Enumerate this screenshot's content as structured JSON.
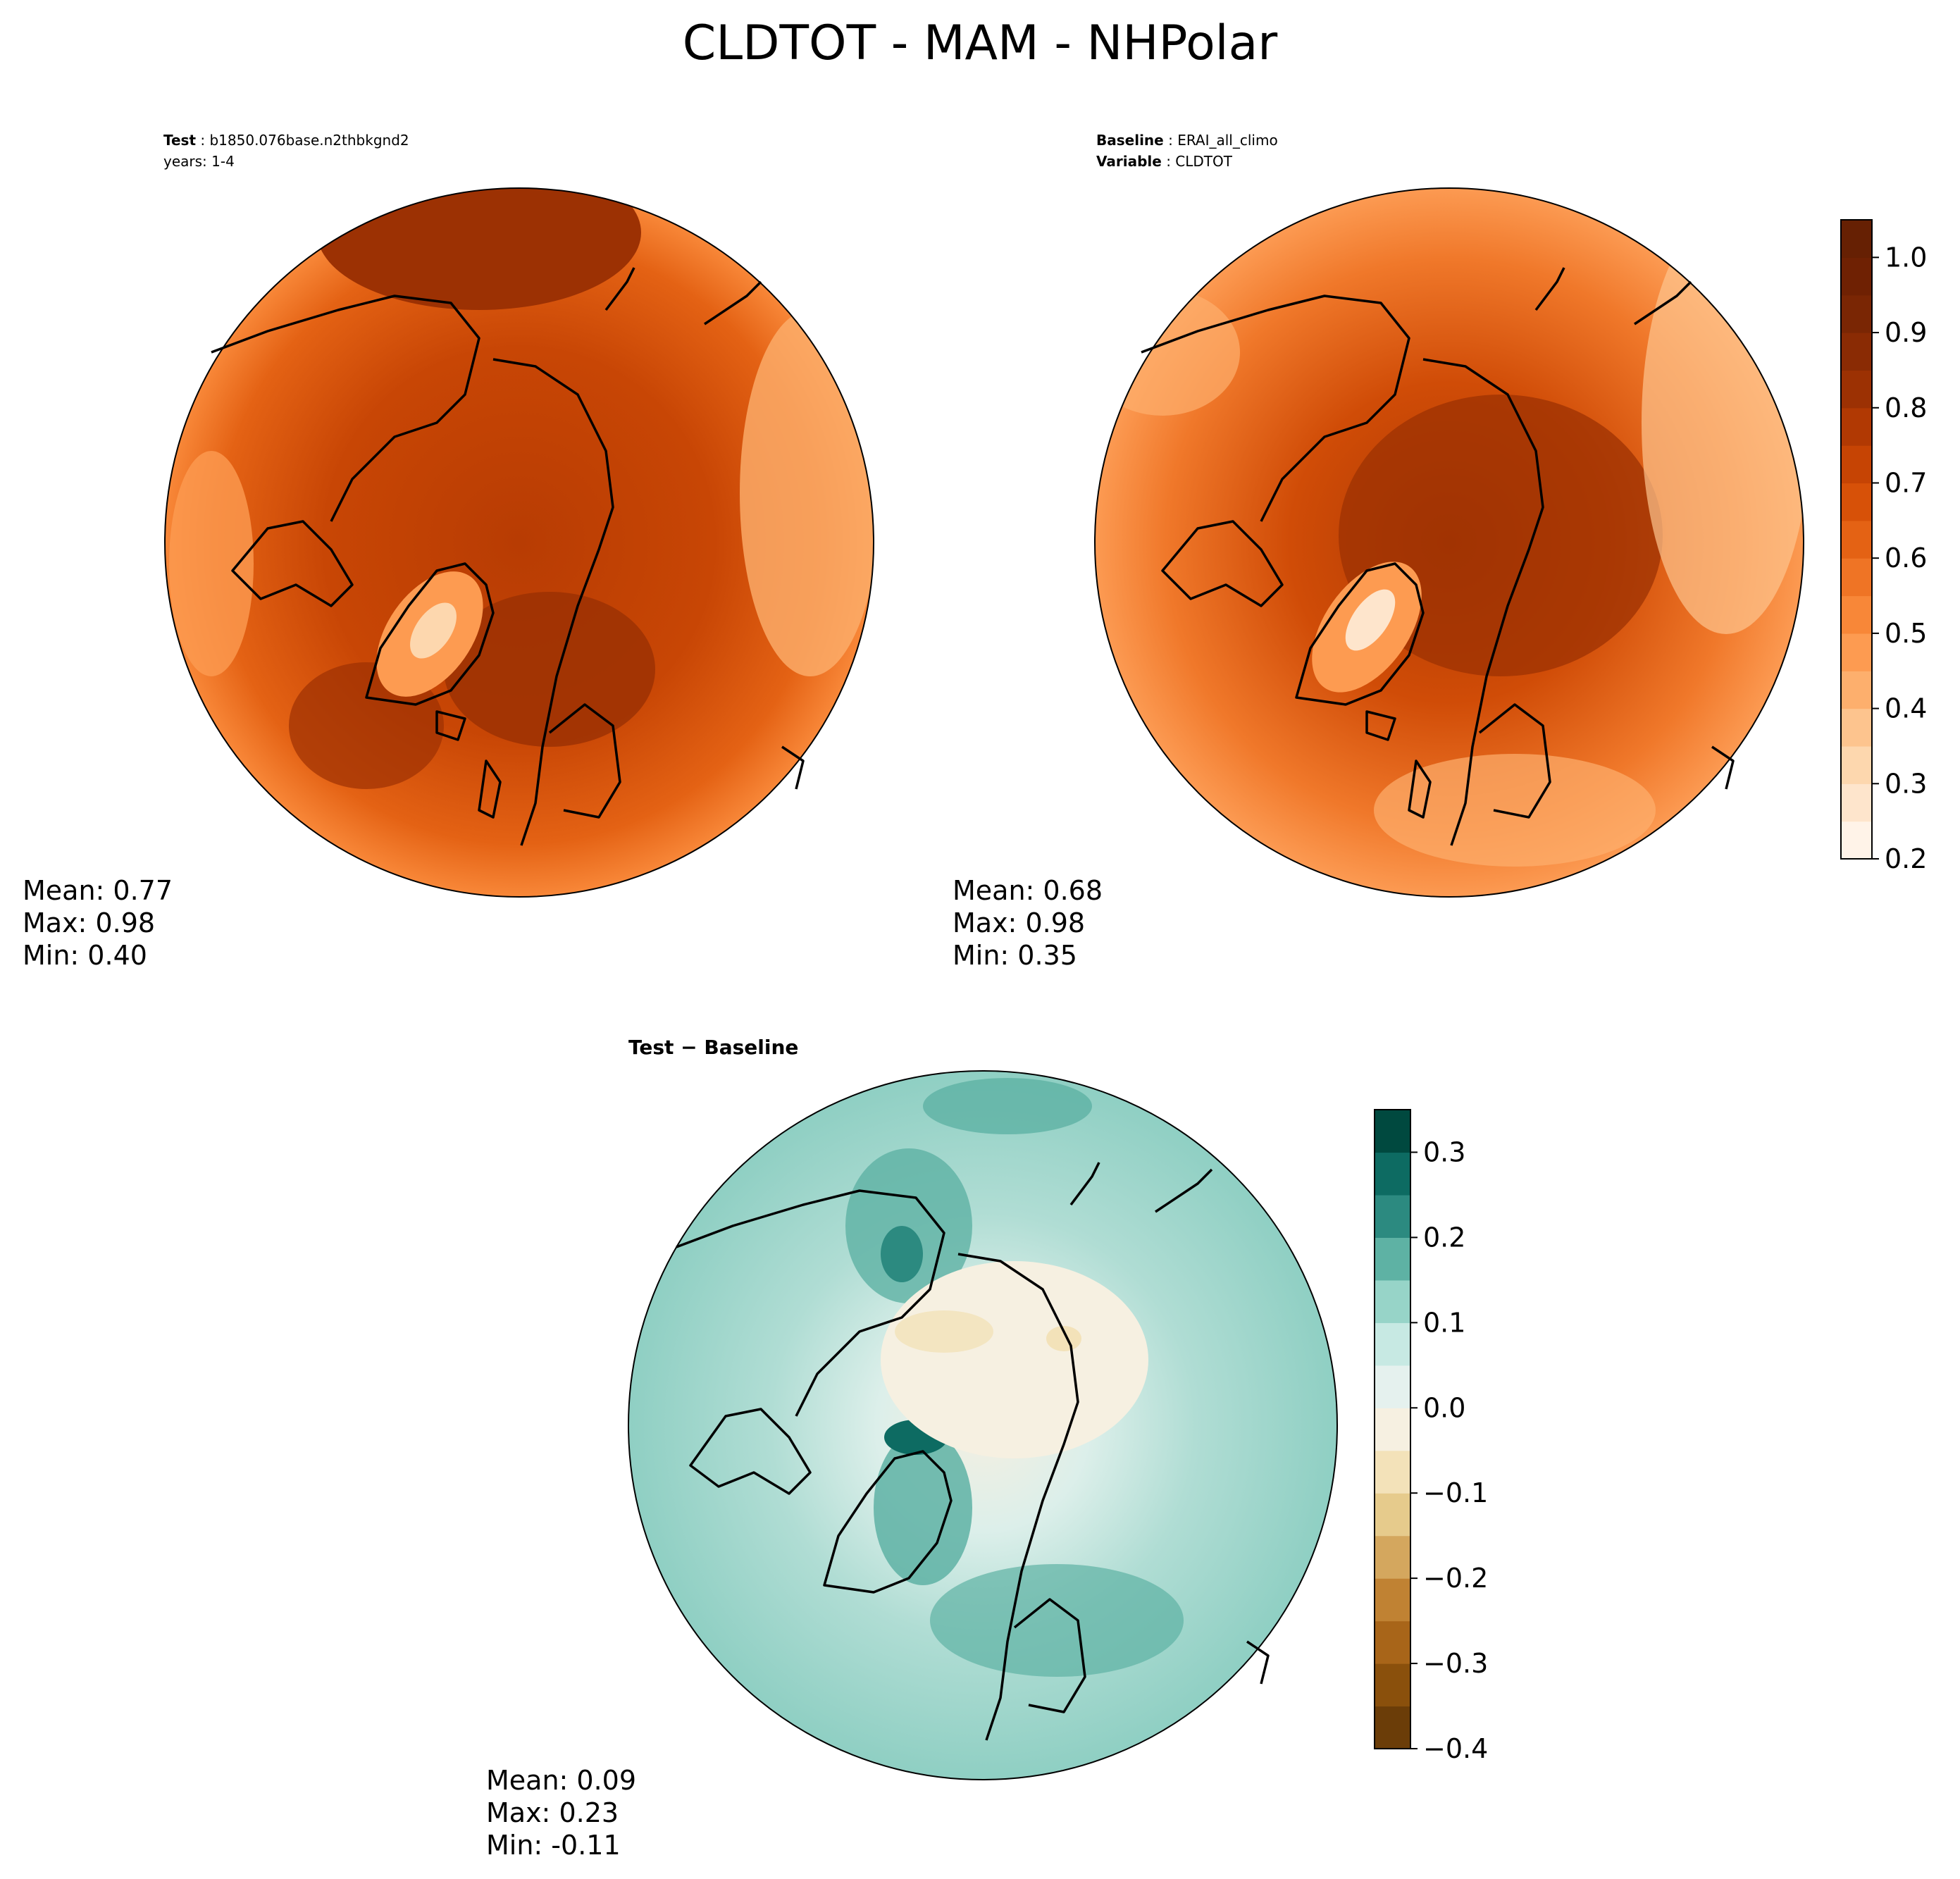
{
  "figure": {
    "title": "CLDTOT - MAM - NHPolar"
  },
  "panels": {
    "test": {
      "label_key": "Test",
      "label_value": "b1850.076base.n2thbkgnd2",
      "years": "years: 1-4",
      "mean": "Mean:  0.77",
      "max": "Max:  0.98",
      "min": "Min:  0.40"
    },
    "baseline": {
      "label_key": "Baseline",
      "label_value": "ERAI_all_climo",
      "var_key": "Variable",
      "var_value": "CLDTOT",
      "mean": "Mean:  0.68",
      "max": "Max:  0.98",
      "min": "Min:  0.35"
    },
    "diff": {
      "title": "Test − Baseline",
      "mean": "Mean:  0.09",
      "max": "Max:  0.23",
      "min": "Min: -0.11"
    }
  },
  "chart_data": [
    {
      "type": "heatmap",
      "projection": "north polar stereographic",
      "field": "CLDTOT",
      "colormap": "Oranges",
      "colorbar_range": [
        0.2,
        1.05
      ],
      "colorbar_ticks": [
        "0.2",
        "0.3",
        "0.4",
        "0.5",
        "0.6",
        "0.7",
        "0.8",
        "0.9",
        "1.0"
      ],
      "colorbar_tick_values": [
        0.2,
        0.3,
        0.4,
        0.5,
        0.6,
        0.7,
        0.8,
        0.9,
        1.0
      ],
      "levels": 17,
      "colors": [
        "#fff3e8",
        "#fee5cc",
        "#fdd7ae",
        "#fdc48e",
        "#fdaf6d",
        "#fd9b51",
        "#f88738",
        "#ef7425",
        "#e46214",
        "#d75108",
        "#c64404",
        "#b13903",
        "#9c3103",
        "#8a2b04",
        "#7a2604",
        "#6f2103",
        "#662003"
      ],
      "panels": [
        {
          "name": "Test",
          "mean": 0.77,
          "max": 0.98,
          "min": 0.4
        },
        {
          "name": "Baseline",
          "mean": 0.68,
          "max": 0.98,
          "min": 0.35
        }
      ]
    },
    {
      "type": "heatmap",
      "projection": "north polar stereographic",
      "field": "CLDTOT difference",
      "colormap": "BrBG",
      "colorbar_range": [
        -0.4,
        0.35
      ],
      "colorbar_ticks": [
        "−0.4",
        "−0.3",
        "−0.2",
        "−0.1",
        "0.0",
        "0.1",
        "0.2",
        "0.3"
      ],
      "colorbar_tick_values": [
        -0.4,
        -0.3,
        -0.2,
        -0.1,
        0.0,
        0.1,
        0.2,
        0.3
      ],
      "levels": 15,
      "colors": [
        "#6b3d08",
        "#8a500c",
        "#a86519",
        "#c08233",
        "#d4a75e",
        "#e6cb8c",
        "#f3e2b9",
        "#f6f0e1",
        "#e5f1ee",
        "#c7e9e3",
        "#97d4c8",
        "#5eb2a4",
        "#2c8a80",
        "#0d6b62",
        "#00493f"
      ],
      "panels": [
        {
          "name": "Test − Baseline",
          "mean": 0.09,
          "max": 0.23,
          "min": -0.11
        }
      ]
    }
  ]
}
